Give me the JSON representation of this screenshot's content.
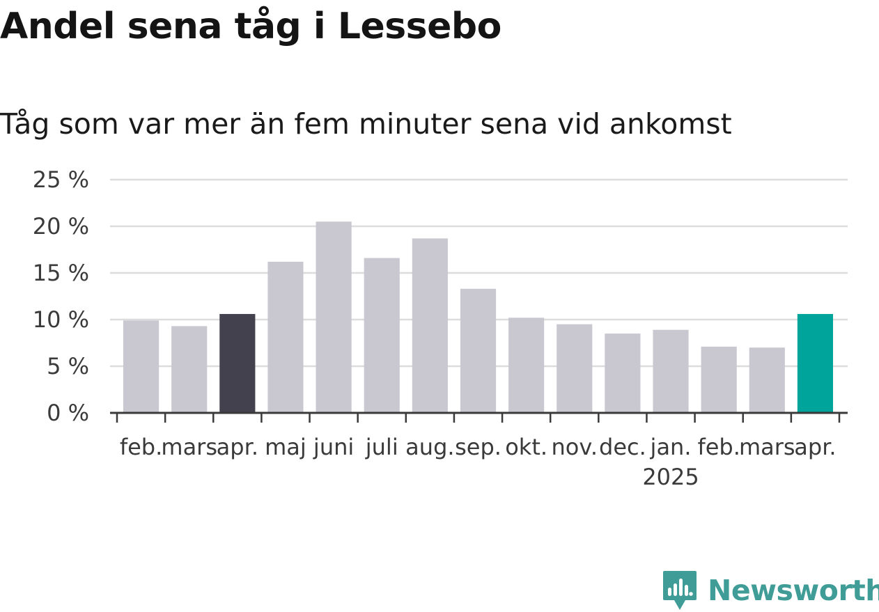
{
  "title": "Andel sena tåg i Lessebo",
  "subtitle": "Tåg som var mer än fem minuter sena vid ankomst",
  "logo": {
    "text": "Newsworthy",
    "icon": "newsworthy-bar-chart-icon",
    "color": "#3f9c96"
  },
  "chart_data": {
    "type": "bar",
    "categories": [
      "feb.",
      "mars",
      "apr.",
      "maj",
      "juni",
      "juli",
      "aug.",
      "sep.",
      "okt.",
      "nov.",
      "dec.",
      "jan.",
      "feb.",
      "mars",
      "apr."
    ],
    "year_labels": [
      {
        "index": 11,
        "label": "2025"
      }
    ],
    "values": [
      9.9,
      9.3,
      10.6,
      16.2,
      20.5,
      16.6,
      18.7,
      13.3,
      10.2,
      9.5,
      8.5,
      8.9,
      7.1,
      7.0,
      10.6
    ],
    "highlight": [
      {
        "index": 2,
        "color": "#43414e"
      },
      {
        "index": 14,
        "color": "#00a49a"
      }
    ],
    "bar_color": "#c9c8d1",
    "ylim": [
      0,
      25
    ],
    "yticks": [
      0,
      5,
      10,
      15,
      20,
      25
    ],
    "ytick_labels": [
      "0 %",
      "5 %",
      "10 %",
      "15 %",
      "20 %",
      "25 %"
    ],
    "grid": true,
    "xlabel": "",
    "ylabel": ""
  }
}
